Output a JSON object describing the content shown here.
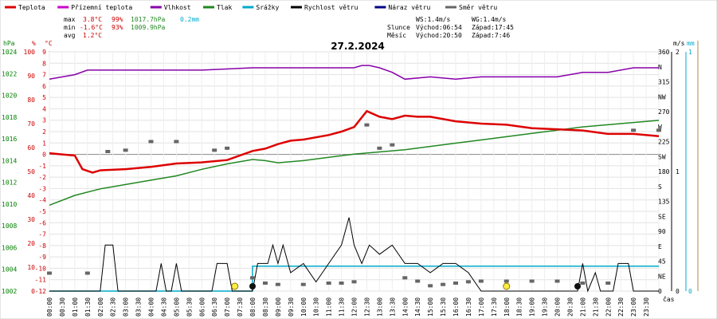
{
  "chart_data": {
    "type": "line",
    "title": "27.2.2024",
    "xlabel": "čas",
    "x_ticks": [
      "00:00",
      "00:30",
      "01:00",
      "01:30",
      "02:00",
      "02:30",
      "03:00",
      "03:30",
      "04:00",
      "04:30",
      "05:00",
      "05:30",
      "06:00",
      "06:30",
      "07:00",
      "07:30",
      "08:00",
      "08:30",
      "09:00",
      "09:30",
      "10:00",
      "10:30",
      "11:00",
      "11:30",
      "12:00",
      "12:30",
      "13:00",
      "13:30",
      "14:00",
      "14:30",
      "15:00",
      "15:30",
      "16:00",
      "16:30",
      "17:00",
      "17:30",
      "18:00",
      "18:30",
      "19:00",
      "19:30",
      "20:00",
      "20:30",
      "21:00",
      "21:30",
      "22:00",
      "22:30",
      "23:00",
      "23:30"
    ],
    "axes": {
      "hpa": {
        "label": "hPa",
        "color": "#008000",
        "ticks": [
          "1024",
          "1022",
          "1020",
          "1018",
          "1016",
          "1014",
          "1012",
          "1010",
          "1008",
          "1006",
          "1004",
          "1002"
        ]
      },
      "pct": {
        "label": "%",
        "color": "#cc0000",
        "ticks": [
          "100",
          "90",
          "80",
          "70",
          "60",
          "50",
          "40",
          "30",
          "20",
          "10",
          "0"
        ]
      },
      "temp": {
        "label": "°C",
        "color": "#cc0000",
        "ticks": [
          "9",
          "8",
          "7",
          "6",
          "5",
          "4",
          "3",
          "2",
          "1",
          "0",
          "-1",
          "-2",
          "-3",
          "-4",
          "-5",
          "-6",
          "-7",
          "-8",
          "-9",
          "-10",
          "-11",
          "-12"
        ]
      },
      "dir": {
        "ticks": [
          "360",
          "N",
          "315",
          "NW",
          "270",
          "W",
          "225",
          "SW",
          "180",
          "S",
          "135",
          "SE",
          "90",
          "E",
          "45",
          "NE",
          "0"
        ]
      },
      "ms": {
        "label": "m/s",
        "ticks": [
          "2",
          "1",
          "0"
        ]
      },
      "mm": {
        "label": "mm",
        "color": "#00aacc",
        "ticks": [
          "1",
          "0"
        ]
      }
    },
    "legend": [
      {
        "name": "Teplota",
        "color": "#dd0000"
      },
      {
        "name": "Přízemní teplota",
        "color": "#cc00cc"
      },
      {
        "name": "Vlhkost",
        "color": "#8800aa"
      },
      {
        "name": "Tlak",
        "color": "#228822"
      },
      {
        "name": "Srážky",
        "color": "#00aacc"
      },
      {
        "name": "Rychlost větru",
        "color": "#000000"
      },
      {
        "name": "Náraz větru",
        "color": "#000088"
      },
      {
        "name": "Směr větru",
        "color": "#666666"
      }
    ],
    "stats": {
      "max_label": "max",
      "max_temp": "3.8°C",
      "max_hum": "99%",
      "max_press": "1017.7hPa",
      "max_rain": "0.2mm",
      "min_label": "min",
      "min_temp": "-1.6°C",
      "min_hum": "93%",
      "min_press": "1009.9hPa",
      "avg_label": "avg",
      "avg_temp": "1.2°C"
    },
    "astro": {
      "ws": "WS:1.4m/s",
      "wg": "WG:1.4m/s",
      "sun_label": "Slunce",
      "sunrise": "Východ:06:54",
      "sunset": "Západ:17:45",
      "moon_label": "Měsíc",
      "moonrise": "Východ:20:50",
      "moonset": "Západ:7:46"
    },
    "series": [
      {
        "name": "Teplota",
        "unit": "°C",
        "points": [
          [
            0,
            0.1
          ],
          [
            0.5,
            0
          ],
          [
            1,
            -0.1
          ],
          [
            1.3,
            -1.3
          ],
          [
            1.7,
            -1.6
          ],
          [
            2,
            -1.4
          ],
          [
            3,
            -1.3
          ],
          [
            4,
            -1.1
          ],
          [
            5,
            -0.8
          ],
          [
            6,
            -0.7
          ],
          [
            7,
            -0.5
          ],
          [
            8,
            0.3
          ],
          [
            8.5,
            0.5
          ],
          [
            9,
            0.9
          ],
          [
            9.5,
            1.2
          ],
          [
            10,
            1.3
          ],
          [
            11,
            1.7
          ],
          [
            11.5,
            2
          ],
          [
            12,
            2.4
          ],
          [
            12.5,
            3.8
          ],
          [
            13,
            3.3
          ],
          [
            13.5,
            3.1
          ],
          [
            14,
            3.4
          ],
          [
            14.5,
            3.3
          ],
          [
            15,
            3.3
          ],
          [
            16,
            2.9
          ],
          [
            17,
            2.7
          ],
          [
            18,
            2.6
          ],
          [
            19,
            2.3
          ],
          [
            20,
            2.2
          ],
          [
            21,
            2.1
          ],
          [
            22,
            1.8
          ],
          [
            23,
            1.8
          ],
          [
            24,
            1.6
          ]
        ]
      },
      {
        "name": "Vlhkost",
        "unit": "%",
        "points": [
          [
            0,
            93
          ],
          [
            1,
            95
          ],
          [
            1.5,
            97
          ],
          [
            2,
            97
          ],
          [
            4,
            97
          ],
          [
            6,
            97
          ],
          [
            8,
            98
          ],
          [
            12,
            98
          ],
          [
            12.3,
            99
          ],
          [
            12.6,
            99
          ],
          [
            13,
            98
          ],
          [
            13.5,
            96
          ],
          [
            14,
            93
          ],
          [
            15,
            94
          ],
          [
            16,
            93
          ],
          [
            17,
            94
          ],
          [
            18,
            94
          ],
          [
            19,
            94
          ],
          [
            20,
            94
          ],
          [
            21,
            96
          ],
          [
            22,
            96
          ],
          [
            23,
            98
          ],
          [
            24,
            98
          ]
        ]
      },
      {
        "name": "Tlak",
        "unit": "hPa",
        "points": [
          [
            0,
            1009.9
          ],
          [
            1,
            1010.8
          ],
          [
            2,
            1011.4
          ],
          [
            3,
            1011.8
          ],
          [
            4,
            1012.2
          ],
          [
            5,
            1012.6
          ],
          [
            6,
            1013.2
          ],
          [
            7,
            1013.7
          ],
          [
            8,
            1014.1
          ],
          [
            8.5,
            1014.0
          ],
          [
            9,
            1013.8
          ],
          [
            10,
            1014.0
          ],
          [
            11,
            1014.3
          ],
          [
            12,
            1014.6
          ],
          [
            13,
            1014.8
          ],
          [
            14,
            1015.0
          ],
          [
            15,
            1015.3
          ],
          [
            16,
            1015.6
          ],
          [
            17,
            1015.9
          ],
          [
            18,
            1016.2
          ],
          [
            19,
            1016.5
          ],
          [
            20,
            1016.8
          ],
          [
            21,
            1017.1
          ],
          [
            22,
            1017.3
          ],
          [
            23,
            1017.5
          ],
          [
            24,
            1017.7
          ]
        ]
      },
      {
        "name": "Srážky",
        "unit": "mm",
        "points": [
          [
            0,
            0
          ],
          [
            7.99,
            0
          ],
          [
            8,
            0.2
          ],
          [
            24,
            0.2
          ]
        ]
      },
      {
        "name": "Rychlost větru",
        "unit": "m/s",
        "points": [
          [
            0,
            0
          ],
          [
            2.0,
            0
          ],
          [
            2.2,
            0.5
          ],
          [
            2.5,
            0.5
          ],
          [
            2.7,
            0
          ],
          [
            4.2,
            0
          ],
          [
            4.4,
            0.3
          ],
          [
            4.6,
            0
          ],
          [
            4.8,
            0
          ],
          [
            5.0,
            0.3
          ],
          [
            5.2,
            0
          ],
          [
            6.4,
            0
          ],
          [
            6.6,
            0.3
          ],
          [
            7.0,
            0.3
          ],
          [
            7.2,
            0
          ],
          [
            8.0,
            0
          ],
          [
            8.2,
            0.3
          ],
          [
            8.6,
            0.3
          ],
          [
            8.8,
            0.5
          ],
          [
            9.0,
            0.3
          ],
          [
            9.2,
            0.5
          ],
          [
            9.5,
            0.2
          ],
          [
            10,
            0.3
          ],
          [
            10.5,
            0.1
          ],
          [
            11,
            0.3
          ],
          [
            11.5,
            0.5
          ],
          [
            11.8,
            0.8
          ],
          [
            12,
            0.5
          ],
          [
            12.3,
            0.3
          ],
          [
            12.6,
            0.5
          ],
          [
            13,
            0.4
          ],
          [
            13.5,
            0.5
          ],
          [
            14,
            0.3
          ],
          [
            14.5,
            0.3
          ],
          [
            15,
            0.2
          ],
          [
            15.5,
            0.3
          ],
          [
            16,
            0.3
          ],
          [
            16.5,
            0.2
          ],
          [
            17,
            0
          ],
          [
            20.8,
            0
          ],
          [
            21,
            0.3
          ],
          [
            21.2,
            0
          ],
          [
            21.5,
            0.2
          ],
          [
            21.7,
            0
          ],
          [
            22.2,
            0
          ],
          [
            22.4,
            0.3
          ],
          [
            22.8,
            0.3
          ],
          [
            23,
            0
          ],
          [
            24,
            0
          ]
        ]
      },
      {
        "name": "Směr větru",
        "unit": "°",
        "points": [
          [
            0,
            27
          ],
          [
            1.5,
            27
          ],
          [
            2.3,
            210
          ],
          [
            3,
            212
          ],
          [
            4,
            225
          ],
          [
            5,
            225
          ],
          [
            6.5,
            212
          ],
          [
            7,
            215
          ],
          [
            8,
            20
          ],
          [
            8.5,
            12
          ],
          [
            9,
            10
          ],
          [
            10,
            10
          ],
          [
            11,
            12
          ],
          [
            11.5,
            12
          ],
          [
            12,
            14
          ],
          [
            12.5,
            250
          ],
          [
            13,
            215
          ],
          [
            13.5,
            220
          ],
          [
            14,
            20
          ],
          [
            14.5,
            15
          ],
          [
            15,
            8
          ],
          [
            15.5,
            10
          ],
          [
            16,
            12
          ],
          [
            16.5,
            14
          ],
          [
            17,
            15
          ],
          [
            18,
            15
          ],
          [
            19,
            15
          ],
          [
            20,
            15
          ],
          [
            21,
            12
          ],
          [
            22,
            12
          ],
          [
            23,
            242
          ],
          [
            24,
            242
          ]
        ]
      }
    ]
  }
}
